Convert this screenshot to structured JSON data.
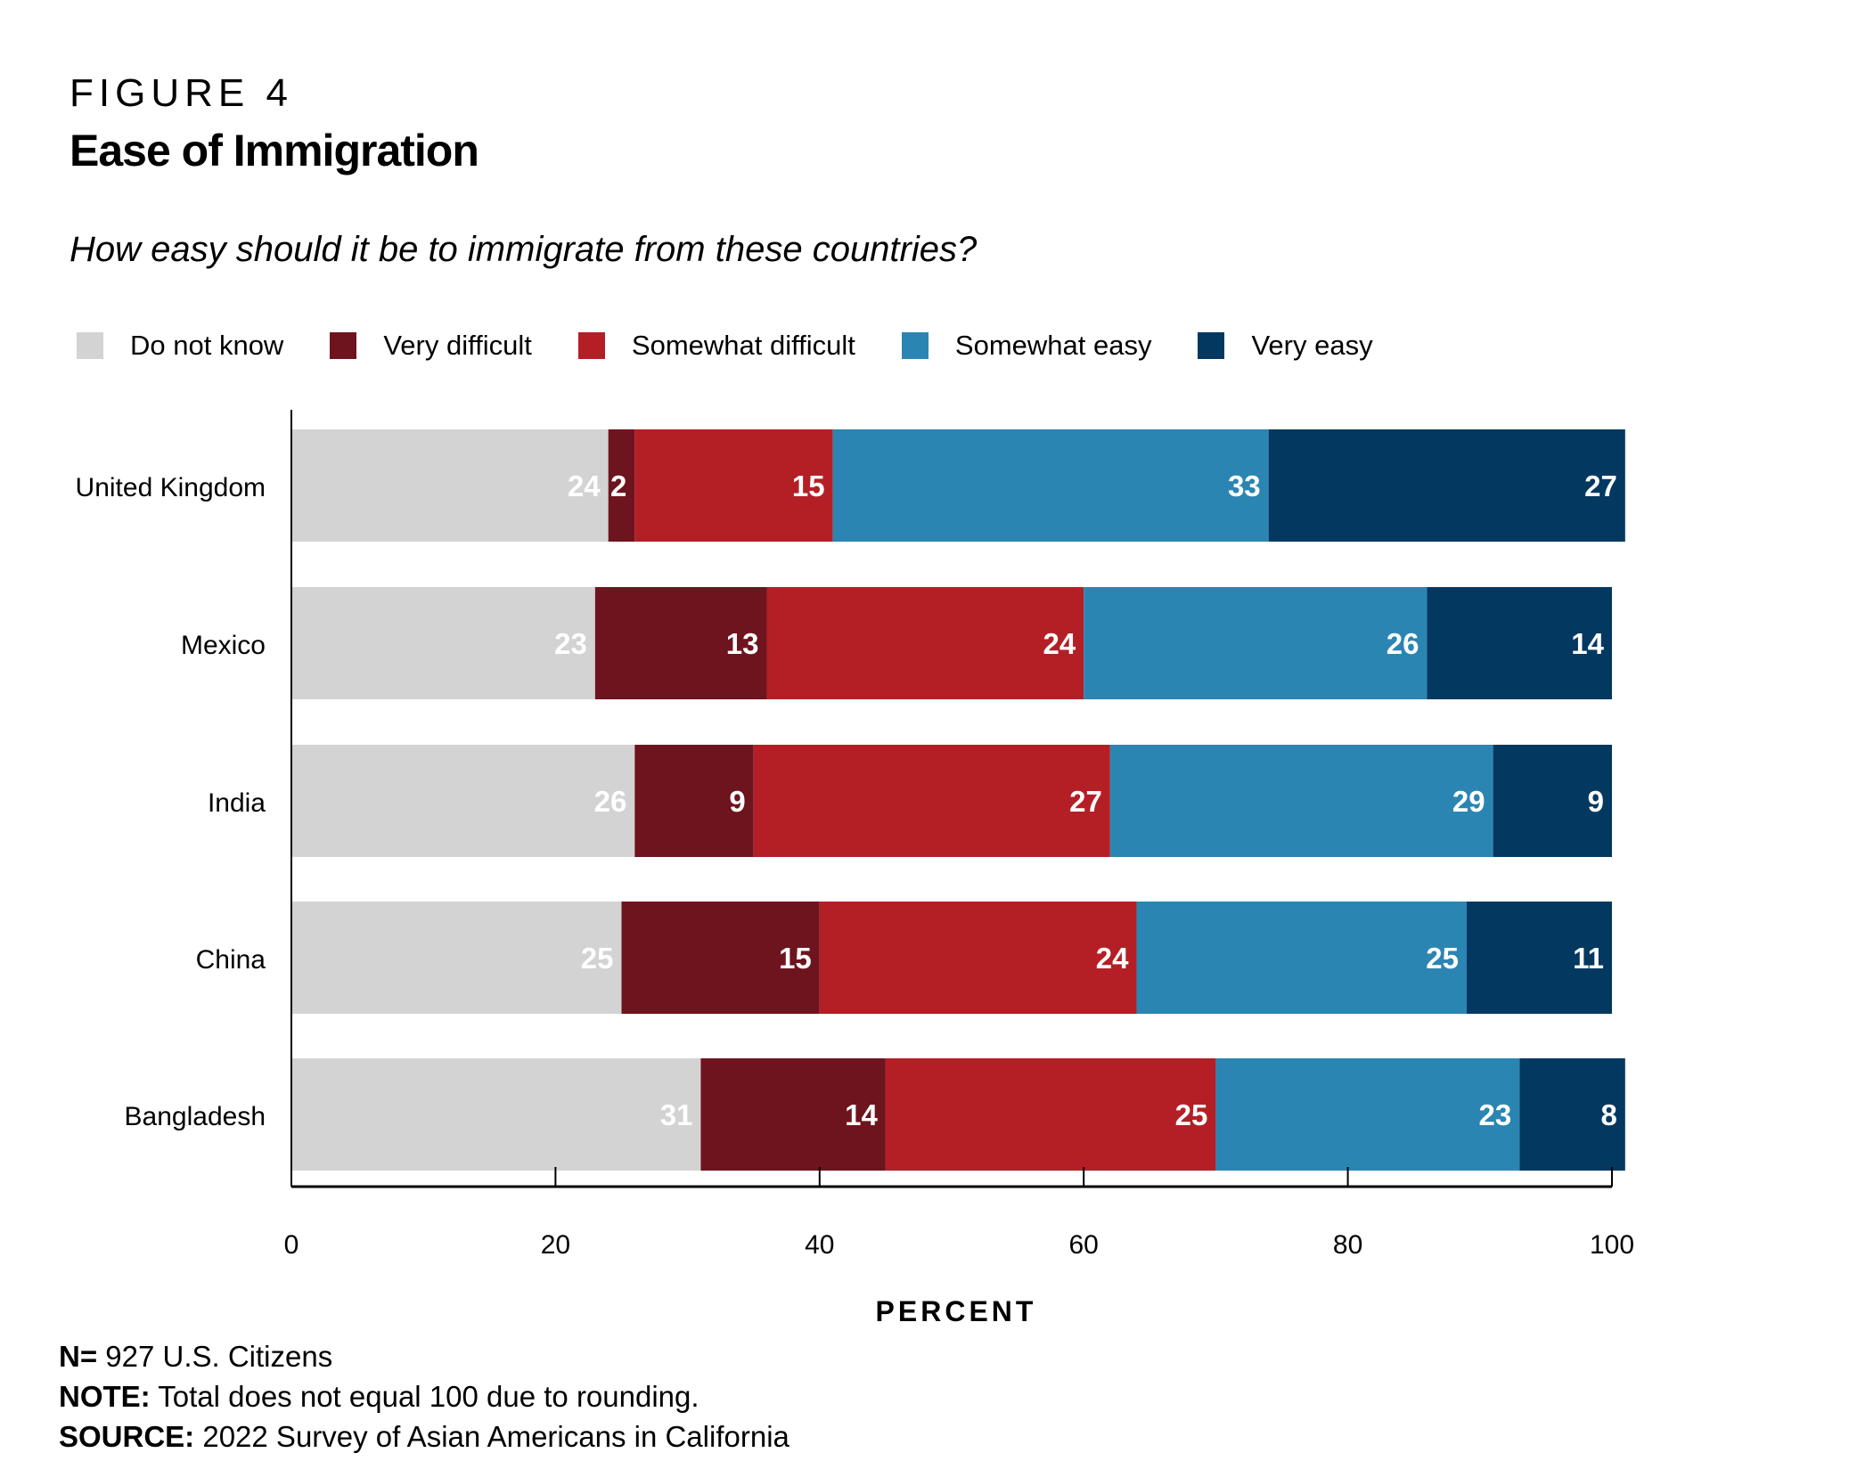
{
  "header": {
    "figure_label": "FIGURE 4",
    "title": "Ease of Immigration",
    "subtitle": "How easy should it be to immigrate from these countries?"
  },
  "legend": [
    {
      "label": "Do not know",
      "color": "#d3d3d3"
    },
    {
      "label": "Very difficult",
      "color": "#6e141e"
    },
    {
      "label": "Somewhat difficult",
      "color": "#b41f26"
    },
    {
      "label": "Somewhat easy",
      "color": "#2b85b2"
    },
    {
      "label": "Very easy",
      "color": "#033861"
    }
  ],
  "chart_data": {
    "type": "bar",
    "orientation": "horizontal",
    "stacked": true,
    "title": "Ease of Immigration",
    "subtitle": "How easy should it be to immigrate from these countries?",
    "xlabel": "PERCENT",
    "ylabel": "",
    "xlim": [
      0,
      100
    ],
    "xticks": [
      0,
      20,
      40,
      60,
      80,
      100
    ],
    "grid": false,
    "legend_position": "top-left",
    "categories": [
      "United Kingdom",
      "Mexico",
      "India",
      "China",
      "Bangladesh"
    ],
    "series": [
      {
        "name": "Do not know",
        "color": "#d3d3d3",
        "values": [
          24,
          23,
          26,
          25,
          31
        ]
      },
      {
        "name": "Very difficult",
        "color": "#6e141e",
        "values": [
          2,
          13,
          9,
          15,
          14
        ]
      },
      {
        "name": "Somewhat difficult",
        "color": "#b41f26",
        "values": [
          15,
          24,
          27,
          24,
          25
        ]
      },
      {
        "name": "Somewhat easy",
        "color": "#2b85b2",
        "values": [
          33,
          26,
          29,
          25,
          23
        ]
      },
      {
        "name": "Very easy",
        "color": "#033861",
        "values": [
          27,
          14,
          9,
          11,
          8
        ]
      }
    ]
  },
  "notes": {
    "n_label": "N=",
    "n_text": " 927 U.S. Citizens",
    "note_label": "NOTE:",
    "note_text": " Total does not equal 100 due to rounding.",
    "source_label": "SOURCE:",
    "source_text": " 2022 Survey of Asian Americans in California"
  }
}
